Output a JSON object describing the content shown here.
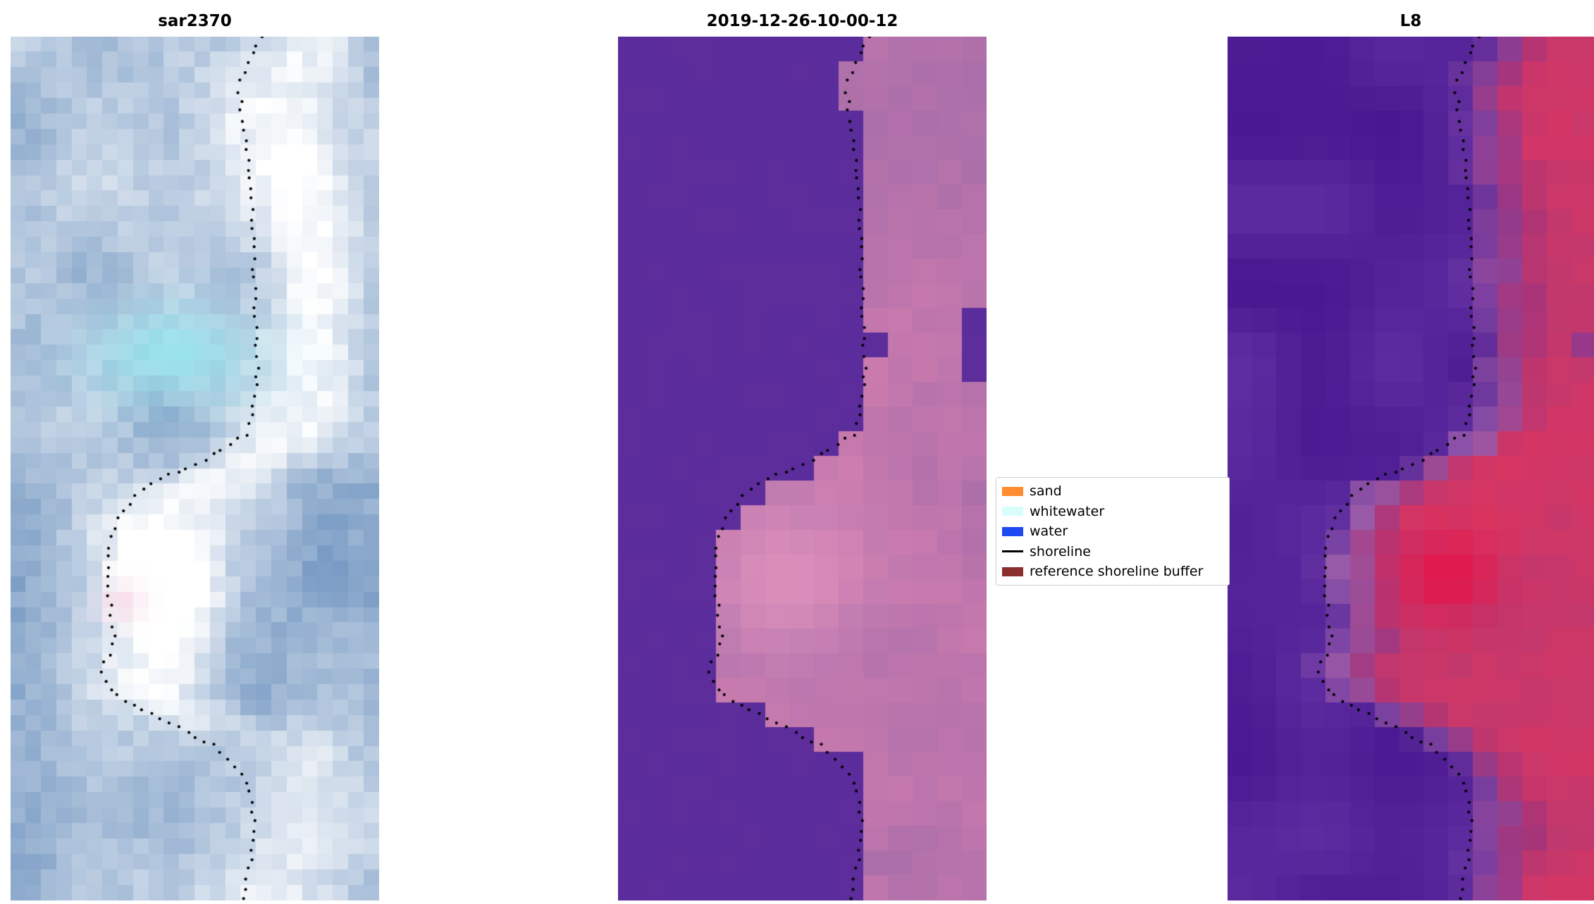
{
  "figure": {
    "background": "#ffffff"
  },
  "chart_data": {
    "type": "heatmap",
    "subtype": "satellite-shoreline-detection-triptych",
    "description": "Three co-registered coastal image panels with a detected shoreline drawn as black dots",
    "panels": [
      {
        "title": "sar2370",
        "kind": "sar",
        "grid": {
          "cols": 24,
          "rows": 56
        },
        "palette": {
          "deep": "#3c6ea9",
          "light": "#ffffff",
          "cyan": "#8feaf0",
          "pink": "#f6d9e6"
        }
      },
      {
        "title": "2019-12-26-10-00-12",
        "kind": "classified",
        "grid": {
          "cols": 15,
          "rows": 35
        },
        "palette": {
          "purple": "#5b2c9b",
          "mauve": "#9a68a8",
          "pink": "#cf7cae",
          "bright_pink": "#df93bd"
        }
      },
      {
        "title": "L8",
        "kind": "landsat",
        "grid": {
          "cols": 15,
          "rows": 35
        },
        "palette": {
          "purple_dark": "#47168f",
          "purple_light": "#6a38aa",
          "red_dark": "#b23a74",
          "red": "#dd3560",
          "red_bright": "#e51349",
          "lavender": "#bb8ec4"
        }
      }
    ],
    "legend": {
      "position": "center-right",
      "entries": [
        {
          "label": "sand",
          "color": "#ff8c2e",
          "swatch": "patch"
        },
        {
          "label": "whitewater",
          "color": "#d9fdfb",
          "swatch": "patch"
        },
        {
          "label": "water",
          "color": "#1e49f0",
          "swatch": "patch"
        },
        {
          "label": "shoreline",
          "color": "#000000",
          "swatch": "line"
        },
        {
          "label": "reference shoreline buffer",
          "color": "#8b2e2e",
          "swatch": "patch"
        }
      ]
    },
    "shoreline_points_normalized": [
      [
        0.68,
        0.0
      ],
      [
        0.645,
        0.03
      ],
      [
        0.62,
        0.06
      ],
      [
        0.63,
        0.1
      ],
      [
        0.645,
        0.15
      ],
      [
        0.655,
        0.2
      ],
      [
        0.66,
        0.26
      ],
      [
        0.665,
        0.32
      ],
      [
        0.67,
        0.38
      ],
      [
        0.66,
        0.43
      ],
      [
        0.645,
        0.46
      ],
      [
        0.5,
        0.495
      ],
      [
        0.37,
        0.52
      ],
      [
        0.3,
        0.55
      ],
      [
        0.27,
        0.585
      ],
      [
        0.26,
        0.62
      ],
      [
        0.27,
        0.66
      ],
      [
        0.285,
        0.7
      ],
      [
        0.245,
        0.73
      ],
      [
        0.27,
        0.755
      ],
      [
        0.33,
        0.775
      ],
      [
        0.44,
        0.795
      ],
      [
        0.55,
        0.82
      ],
      [
        0.62,
        0.85
      ],
      [
        0.655,
        0.88
      ],
      [
        0.665,
        0.92
      ],
      [
        0.65,
        0.96
      ],
      [
        0.63,
        1.0
      ]
    ]
  }
}
